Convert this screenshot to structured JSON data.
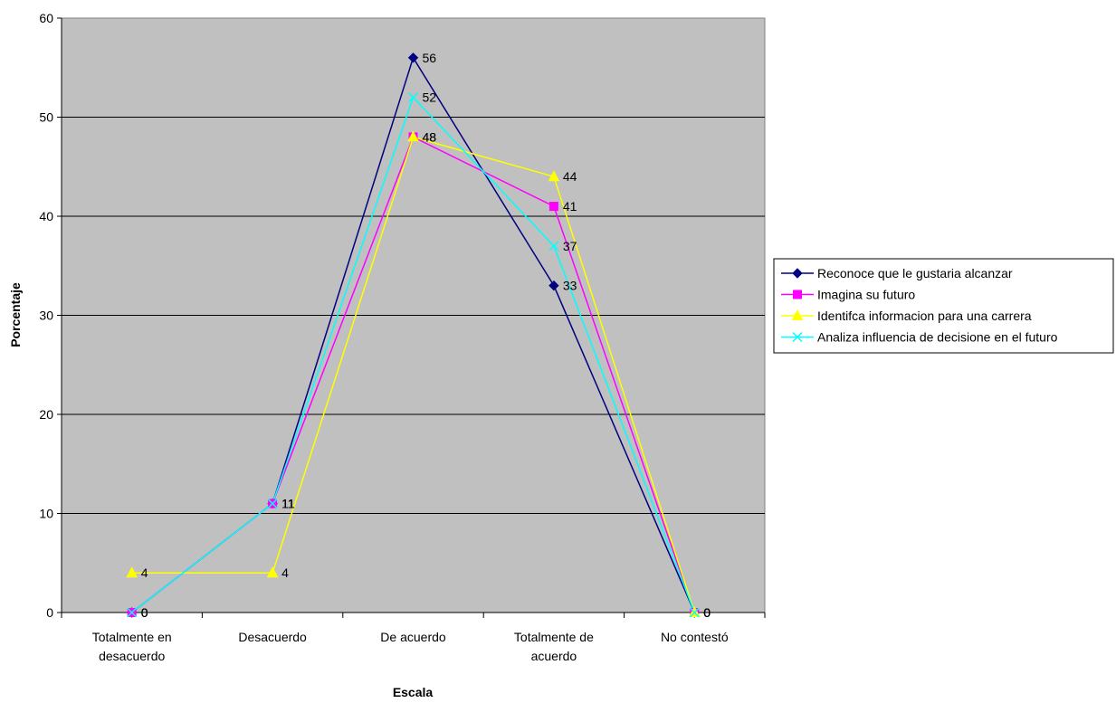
{
  "chart_data": {
    "type": "line",
    "title": "",
    "xlabel": "Escala",
    "ylabel": "Porcentaje",
    "ylim": [
      0,
      60
    ],
    "yticks": [
      0,
      10,
      20,
      30,
      40,
      50,
      60
    ],
    "grid": true,
    "legend_position": "right",
    "plot_background": "#c0c0c0",
    "categories": [
      [
        "Totalmente en",
        "desacuerdo"
      ],
      [
        "Desacuerdo"
      ],
      [
        "De acuerdo"
      ],
      [
        "Totalmente de",
        "acuerdo"
      ],
      [
        "No contestó"
      ]
    ],
    "series": [
      {
        "name": "Reconoce que le gustaria alcanzar",
        "color": "#000080",
        "marker": "diamond",
        "values": [
          0,
          11,
          56,
          33,
          0
        ]
      },
      {
        "name": "Imagina su futuro",
        "color": "#ff00ff",
        "marker": "square",
        "values": [
          0,
          11,
          48,
          41,
          0
        ]
      },
      {
        "name": "Identifca informacion para una carrera",
        "color": "#ffff00",
        "marker": "triangle",
        "values": [
          4,
          4,
          48,
          44,
          0
        ]
      },
      {
        "name": "Analiza influencia de decisione en el futuro",
        "color": "#00ffff",
        "marker": "x",
        "values": [
          0,
          11,
          52,
          37,
          0
        ]
      }
    ]
  }
}
